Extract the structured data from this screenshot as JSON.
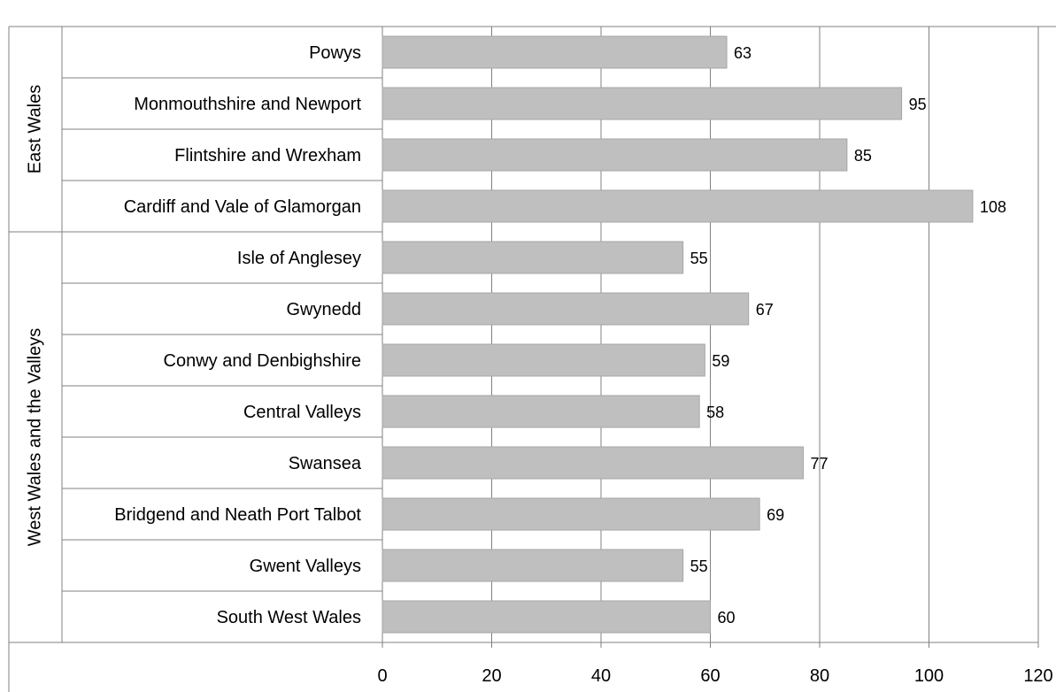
{
  "colors": {
    "bar": "#bfbfbf",
    "bar_stroke": "#a6a6a6",
    "grid": "#808080",
    "text": "#000000"
  },
  "chart_data": {
    "type": "bar",
    "orientation": "horizontal",
    "title": "",
    "xlabel": "",
    "ylabel": "",
    "xlim": [
      0,
      120
    ],
    "x_ticks": [
      0,
      20,
      40,
      60,
      80,
      100,
      120
    ],
    "grid": true,
    "legend": "none",
    "groups": [
      {
        "name": "East Wales",
        "categories": [
          "Powys",
          "Monmouthshire and Newport",
          "Flintshire and Wrexham",
          "Cardiff and Vale of Glamorgan"
        ],
        "values": [
          63,
          95,
          85,
          108
        ]
      },
      {
        "name": "West Wales and the Valleys",
        "categories": [
          "Isle of Anglesey",
          "Gwynedd",
          "Conwy and Denbighshire",
          "Central Valleys",
          "Swansea",
          "Bridgend and Neath Port Talbot",
          "Gwent Valleys",
          "South West Wales"
        ],
        "values": [
          55,
          67,
          59,
          58,
          77,
          69,
          55,
          60
        ]
      }
    ]
  }
}
